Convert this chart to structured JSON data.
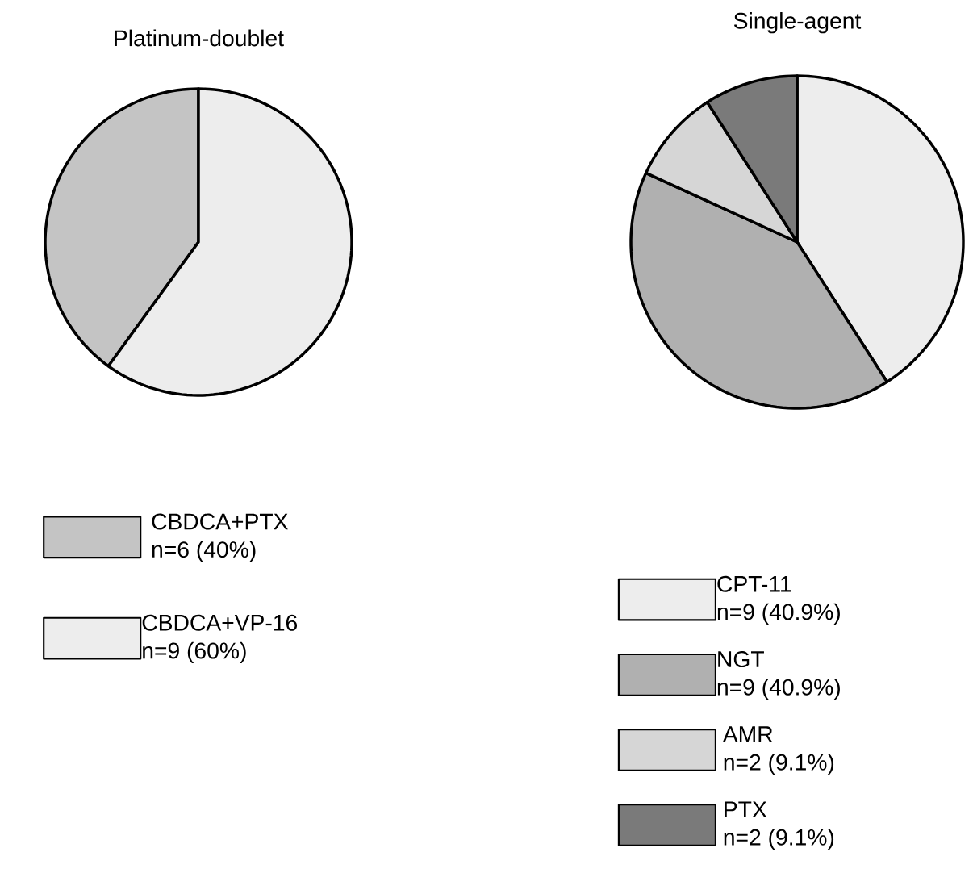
{
  "chart_data": [
    {
      "type": "pie",
      "title": "Platinum-doublet",
      "categories": [
        "CBDCA+PTX",
        "CBDCA+VP-16"
      ],
      "values": [
        6,
        9
      ],
      "value_labels": [
        "n=6 (40%)",
        "n=9 (60%)"
      ],
      "colors": [
        "#c4c4c4",
        "#ededed"
      ],
      "legend": "bottom"
    },
    {
      "type": "pie",
      "title": "Single-agent",
      "categories": [
        "CPT-11",
        "NGT",
        "AMR",
        "PTX"
      ],
      "values": [
        9,
        9,
        2,
        2
      ],
      "value_labels": [
        "n=9 (40.9%)",
        "n=9 (40.9%)",
        "n=2 (9.1%)",
        "n=2 (9.1%)"
      ],
      "colors": [
        "#ededed",
        "#b0b0b0",
        "#d6d6d6",
        "#7a7a7a"
      ],
      "legend": "bottom"
    }
  ]
}
